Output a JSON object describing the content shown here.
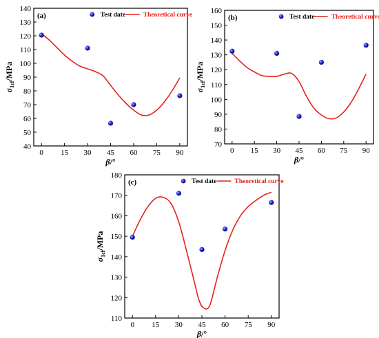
{
  "legend": {
    "scatter_label": "Test date",
    "curve_label": "Theoretical curve",
    "scatter_color": "#1f1fd6",
    "curve_color": "#e8201c"
  },
  "axis_titles": {
    "y_symbol": "σ",
    "y_subscript": "1cf",
    "y_unit": "/MPa",
    "x_symbol": "β",
    "x_unit": "/°"
  },
  "chart_data": [
    {
      "type": "scatter",
      "panel_label": "(a)",
      "xlim": [
        -5,
        95
      ],
      "ylim": [
        40,
        140
      ],
      "xticks": [
        0,
        15,
        30,
        45,
        60,
        75,
        90
      ],
      "yticks": [
        40,
        50,
        60,
        70,
        80,
        90,
        100,
        110,
        120,
        130,
        140
      ],
      "test": [
        {
          "x": 0,
          "y": 120.5
        },
        {
          "x": 30,
          "y": 111
        },
        {
          "x": 45,
          "y": 56.5
        },
        {
          "x": 60,
          "y": 70
        },
        {
          "x": 90,
          "y": 76.5
        }
      ],
      "curve": [
        [
          0,
          121.5
        ],
        [
          5,
          117
        ],
        [
          10,
          111.5
        ],
        [
          15,
          106
        ],
        [
          20,
          101.5
        ],
        [
          25,
          98
        ],
        [
          30,
          96
        ],
        [
          35,
          94
        ],
        [
          40,
          91
        ],
        [
          45,
          84
        ],
        [
          50,
          77
        ],
        [
          55,
          71
        ],
        [
          60,
          66
        ],
        [
          65,
          62.5
        ],
        [
          70,
          62.5
        ],
        [
          75,
          66
        ],
        [
          80,
          72
        ],
        [
          85,
          80
        ],
        [
          90,
          89.5
        ]
      ]
    },
    {
      "type": "scatter",
      "panel_label": "(b)",
      "xlim": [
        -5,
        95
      ],
      "ylim": [
        70,
        160
      ],
      "xticks": [
        0,
        15,
        30,
        45,
        60,
        75,
        90
      ],
      "yticks": [
        70,
        80,
        90,
        100,
        110,
        120,
        130,
        140,
        150,
        160
      ],
      "test": [
        {
          "x": 0,
          "y": 132.5
        },
        {
          "x": 30,
          "y": 131
        },
        {
          "x": 45,
          "y": 88.5
        },
        {
          "x": 60,
          "y": 125
        },
        {
          "x": 90,
          "y": 136.5
        }
      ],
      "curve": [
        [
          0,
          131
        ],
        [
          5,
          126
        ],
        [
          10,
          121.5
        ],
        [
          15,
          118.5
        ],
        [
          20,
          116
        ],
        [
          25,
          115.5
        ],
        [
          30,
          115.5
        ],
        [
          35,
          117
        ],
        [
          40,
          117.5
        ],
        [
          45,
          112
        ],
        [
          50,
          102
        ],
        [
          55,
          94
        ],
        [
          60,
          89.5
        ],
        [
          65,
          87
        ],
        [
          70,
          87.5
        ],
        [
          75,
          91.5
        ],
        [
          80,
          98
        ],
        [
          85,
          107
        ],
        [
          90,
          117
        ]
      ]
    },
    {
      "type": "scatter",
      "panel_label": "(c)",
      "xlim": [
        -5,
        95
      ],
      "ylim": [
        110,
        180
      ],
      "xticks": [
        0,
        15,
        30,
        45,
        60,
        75,
        90
      ],
      "yticks": [
        110,
        120,
        130,
        140,
        150,
        160,
        170,
        180
      ],
      "test": [
        {
          "x": 0,
          "y": 149.5
        },
        {
          "x": 30,
          "y": 171
        },
        {
          "x": 45,
          "y": 143.5
        },
        {
          "x": 60,
          "y": 153.5
        },
        {
          "x": 90,
          "y": 166.5
        }
      ],
      "curve": [
        [
          0,
          150
        ],
        [
          5,
          158
        ],
        [
          10,
          164.5
        ],
        [
          15,
          168.5
        ],
        [
          20,
          169
        ],
        [
          25,
          166
        ],
        [
          30,
          157
        ],
        [
          35,
          143
        ],
        [
          40,
          128
        ],
        [
          43,
          119
        ],
        [
          46,
          115
        ],
        [
          50,
          116
        ],
        [
          55,
          130
        ],
        [
          60,
          143
        ],
        [
          65,
          153
        ],
        [
          70,
          160
        ],
        [
          75,
          164.5
        ],
        [
          80,
          167.5
        ],
        [
          85,
          170
        ],
        [
          90,
          171.5
        ]
      ]
    }
  ]
}
